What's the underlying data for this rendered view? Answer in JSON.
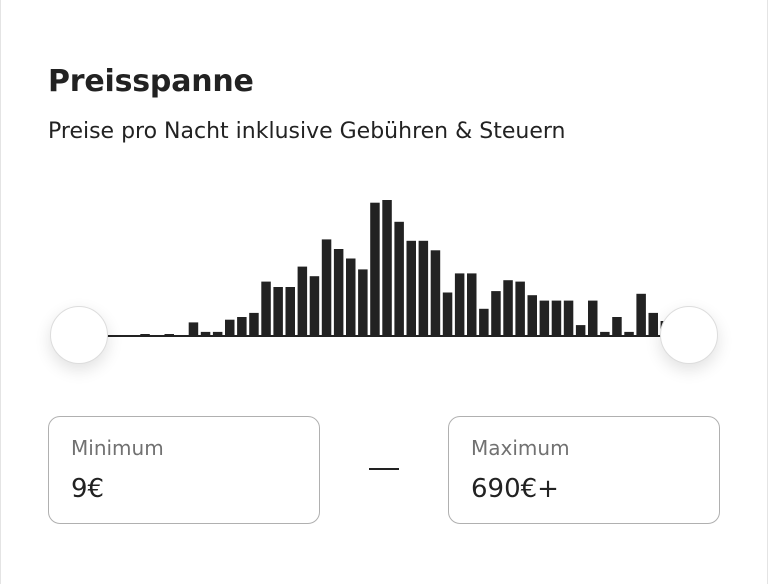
{
  "section": {
    "title": "Preisspanne",
    "subtitle": "Preise pro Nacht inklusive Gebühren & Steuern"
  },
  "histogram": {
    "bar_color": "#222222",
    "relative_heights": [
      0,
      0,
      0,
      0.01,
      0,
      0.01,
      0,
      0.1,
      0.03,
      0.03,
      0.12,
      0.14,
      0.17,
      0.4,
      0.36,
      0.36,
      0.51,
      0.44,
      0.71,
      0.64,
      0.57,
      0.49,
      0.98,
      1.0,
      0.84,
      0.7,
      0.7,
      0.63,
      0.32,
      0.46,
      0.46,
      0.2,
      0.33,
      0.41,
      0.4,
      0.3,
      0.26,
      0.26,
      0.26,
      0.08,
      0.26,
      0.03,
      0.14,
      0.03,
      0.31,
      0.17,
      0.11
    ]
  },
  "slider": {
    "min_position": 0.0,
    "max_position": 1.0
  },
  "minimum": {
    "label": "Minimum",
    "value": "9€"
  },
  "maximum": {
    "label": "Maximum",
    "value": "690€+"
  },
  "separator": "—"
}
